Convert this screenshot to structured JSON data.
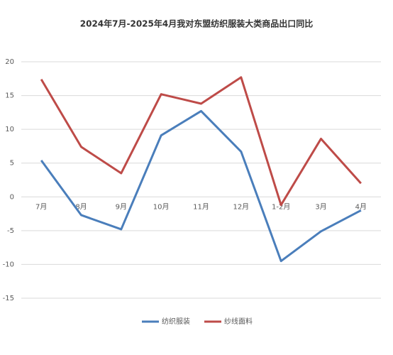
{
  "chart_data": {
    "type": "line",
    "title": "2024年7月-2025年4月我对东盟纺织服装大类商品出口同比",
    "categories": [
      "7月",
      "8月",
      "9月",
      "10月",
      "11月",
      "12月",
      "1-2月",
      "3月",
      "4月"
    ],
    "series": [
      {
        "name": "纺织服装",
        "color": "#4a7ebb",
        "values": [
          5.4,
          -2.7,
          -4.8,
          9.1,
          12.7,
          6.7,
          -9.5,
          -5.1,
          -2.0
        ]
      },
      {
        "name": "纱线面料",
        "color": "#be4b48",
        "values": [
          17.4,
          7.4,
          3.5,
          15.2,
          13.8,
          17.7,
          -1.2,
          8.6,
          2.0
        ]
      }
    ],
    "ylim": [
      -15,
      20
    ],
    "yticks": [
      -15,
      -10,
      -5,
      0,
      5,
      10,
      15,
      20
    ],
    "grid": true,
    "legend": "bottom"
  }
}
